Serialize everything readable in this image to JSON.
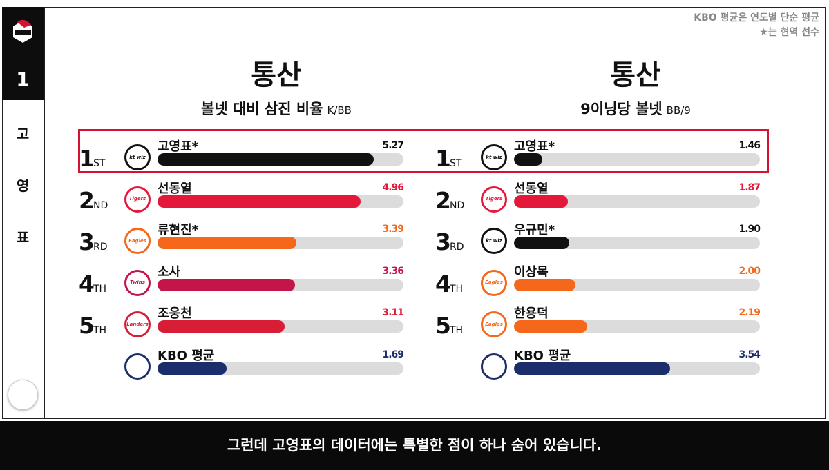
{
  "sidebar": {
    "rank": "1",
    "player_chars": [
      "고",
      "영",
      "표"
    ],
    "top_logo": "kt wiz logo",
    "bottom_logo": "channel logo"
  },
  "note": {
    "line1": "KBO 평균은 연도별 단순 평균",
    "line2": "★는 현역 선수"
  },
  "caption": "그런데 고영표의 데이터에는 특별한 점이 하나 숨어 있습니다.",
  "colors": {
    "highlight": "#d3132f",
    "kt": "#111111",
    "tigers": "#e3183a",
    "eagles": "#f5671a",
    "twins": "#c4154a",
    "landers": "#d81e37",
    "kbo": "#1b2d6b"
  },
  "chart_data": [
    {
      "type": "bar",
      "title": "통산",
      "subtitle": "볼넷 대비 삼진 비율",
      "unit": "K/BB",
      "xlim": [
        0,
        6
      ],
      "rows": [
        {
          "rank": "1",
          "suffix": "ST",
          "name": "고영표*",
          "team": "kt wiz",
          "value": 5.27,
          "label": "5.27",
          "color": "#111111",
          "value_color": "#111111"
        },
        {
          "rank": "2",
          "suffix": "ND",
          "name": "선동열",
          "team": "Tigers",
          "value": 4.96,
          "label": "4.96",
          "color": "#e3183a",
          "value_color": "#e3183a"
        },
        {
          "rank": "3",
          "suffix": "RD",
          "name": "류현진*",
          "team": "Eagles",
          "value": 3.39,
          "label": "3.39",
          "color": "#f5671a",
          "value_color": "#f5671a"
        },
        {
          "rank": "4",
          "suffix": "TH",
          "name": "소사",
          "team": "Twins",
          "value": 3.36,
          "label": "3.36",
          "color": "#c4154a",
          "value_color": "#c4154a"
        },
        {
          "rank": "5",
          "suffix": "TH",
          "name": "조웅천",
          "team": "Landers",
          "value": 3.11,
          "label": "3.11",
          "color": "#d81e37",
          "value_color": "#d81e37"
        },
        {
          "rank": "",
          "suffix": "",
          "name": "KBO 평균",
          "team": "KBO",
          "value": 1.69,
          "label": "1.69",
          "color": "#1b2d6b",
          "value_color": "#1b2d6b"
        }
      ]
    },
    {
      "type": "bar",
      "title": "통산",
      "subtitle": "9이닝당 볼넷",
      "unit": "BB/9",
      "xlim": [
        1,
        5
      ],
      "rows": [
        {
          "rank": "1",
          "suffix": "ST",
          "name": "고영표*",
          "team": "kt wiz",
          "value": 1.46,
          "label": "1.46",
          "color": "#111111",
          "value_color": "#111111"
        },
        {
          "rank": "2",
          "suffix": "ND",
          "name": "선동열",
          "team": "Tigers",
          "value": 1.87,
          "label": "1.87",
          "color": "#e3183a",
          "value_color": "#e3183a"
        },
        {
          "rank": "3",
          "suffix": "RD",
          "name": "우규민*",
          "team": "kt wiz",
          "value": 1.9,
          "label": "1.90",
          "color": "#111111",
          "value_color": "#111111"
        },
        {
          "rank": "4",
          "suffix": "TH",
          "name": "이상목",
          "team": "Eagles",
          "value": 2.0,
          "label": "2.00",
          "color": "#f5671a",
          "value_color": "#f5671a"
        },
        {
          "rank": "5",
          "suffix": "TH",
          "name": "한용덕",
          "team": "Eagles",
          "value": 2.19,
          "label": "2.19",
          "color": "#f5671a",
          "value_color": "#f5671a"
        },
        {
          "rank": "",
          "suffix": "",
          "name": "KBO 평균",
          "team": "KBO",
          "value": 3.54,
          "label": "3.54",
          "color": "#1b2d6b",
          "value_color": "#1b2d6b"
        }
      ]
    }
  ]
}
